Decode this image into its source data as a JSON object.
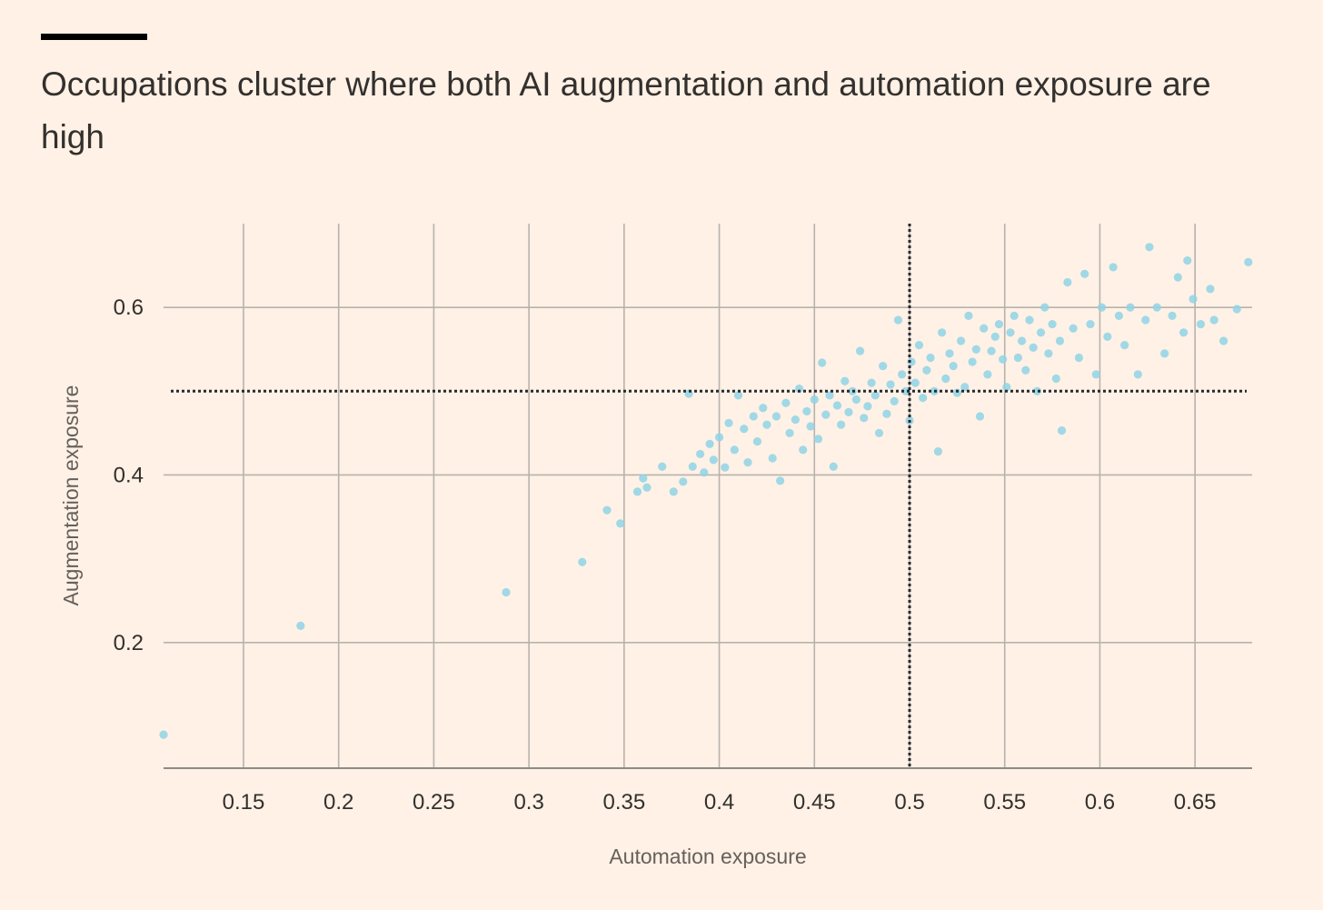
{
  "header": {
    "title": "Occupations cluster where both AI augmentation and automation exposure are high"
  },
  "colors": {
    "background": "#fff1e5",
    "point": "#8fd3e6",
    "grid": "#b8b2ad",
    "reference_line": "#262a33",
    "text": "#33302e"
  },
  "chart_data": {
    "type": "scatter",
    "title": "Occupations cluster where both AI augmentation and automation exposure are high",
    "xlabel": "Automation exposure",
    "ylabel": "Augmentation exposure",
    "xlim": [
      0.108,
      0.68
    ],
    "ylim": [
      0.05,
      0.7
    ],
    "x_ticks": [
      0.15,
      0.2,
      0.25,
      0.3,
      0.35,
      0.4,
      0.45,
      0.5,
      0.55,
      0.6,
      0.65
    ],
    "x_tick_labels": [
      "0.15",
      "0.2",
      "0.25",
      "0.3",
      "0.35",
      "0.4",
      "0.45",
      "0.5",
      "0.55",
      "0.6",
      "0.65"
    ],
    "y_ticks": [
      0.2,
      0.4,
      0.6
    ],
    "y_tick_labels": [
      "0.2",
      "0.4",
      "0.6"
    ],
    "grid": true,
    "reference_lines": {
      "x": 0.5,
      "y": 0.5,
      "style": "dotted"
    },
    "series": [
      {
        "name": "Occupations",
        "points": [
          [
            0.108,
            0.09
          ],
          [
            0.18,
            0.22
          ],
          [
            0.288,
            0.26
          ],
          [
            0.328,
            0.296
          ],
          [
            0.341,
            0.358
          ],
          [
            0.348,
            0.342
          ],
          [
            0.357,
            0.38
          ],
          [
            0.36,
            0.396
          ],
          [
            0.362,
            0.385
          ],
          [
            0.37,
            0.41
          ],
          [
            0.376,
            0.38
          ],
          [
            0.381,
            0.392
          ],
          [
            0.384,
            0.497
          ],
          [
            0.386,
            0.41
          ],
          [
            0.39,
            0.425
          ],
          [
            0.392,
            0.403
          ],
          [
            0.395,
            0.437
          ],
          [
            0.397,
            0.418
          ],
          [
            0.4,
            0.445
          ],
          [
            0.403,
            0.409
          ],
          [
            0.405,
            0.462
          ],
          [
            0.408,
            0.43
          ],
          [
            0.41,
            0.495
          ],
          [
            0.413,
            0.455
          ],
          [
            0.415,
            0.415
          ],
          [
            0.418,
            0.47
          ],
          [
            0.42,
            0.44
          ],
          [
            0.423,
            0.48
          ],
          [
            0.425,
            0.46
          ],
          [
            0.428,
            0.42
          ],
          [
            0.43,
            0.47
          ],
          [
            0.432,
            0.393
          ],
          [
            0.435,
            0.486
          ],
          [
            0.437,
            0.45
          ],
          [
            0.44,
            0.466
          ],
          [
            0.442,
            0.503
          ],
          [
            0.444,
            0.43
          ],
          [
            0.446,
            0.476
          ],
          [
            0.448,
            0.458
          ],
          [
            0.45,
            0.49
          ],
          [
            0.452,
            0.443
          ],
          [
            0.454,
            0.534
          ],
          [
            0.456,
            0.472
          ],
          [
            0.458,
            0.495
          ],
          [
            0.46,
            0.41
          ],
          [
            0.462,
            0.483
          ],
          [
            0.464,
            0.46
          ],
          [
            0.466,
            0.512
          ],
          [
            0.468,
            0.475
          ],
          [
            0.47,
            0.5
          ],
          [
            0.472,
            0.49
          ],
          [
            0.474,
            0.548
          ],
          [
            0.476,
            0.468
          ],
          [
            0.478,
            0.482
          ],
          [
            0.48,
            0.51
          ],
          [
            0.482,
            0.495
          ],
          [
            0.484,
            0.45
          ],
          [
            0.486,
            0.53
          ],
          [
            0.488,
            0.473
          ],
          [
            0.49,
            0.508
          ],
          [
            0.492,
            0.488
          ],
          [
            0.494,
            0.585
          ],
          [
            0.496,
            0.52
          ],
          [
            0.498,
            0.5
          ],
          [
            0.5,
            0.465
          ],
          [
            0.501,
            0.535
          ],
          [
            0.503,
            0.51
          ],
          [
            0.505,
            0.555
          ],
          [
            0.507,
            0.492
          ],
          [
            0.509,
            0.525
          ],
          [
            0.511,
            0.54
          ],
          [
            0.513,
            0.5
          ],
          [
            0.515,
            0.428
          ],
          [
            0.517,
            0.57
          ],
          [
            0.519,
            0.515
          ],
          [
            0.521,
            0.545
          ],
          [
            0.523,
            0.53
          ],
          [
            0.525,
            0.498
          ],
          [
            0.527,
            0.56
          ],
          [
            0.529,
            0.505
          ],
          [
            0.531,
            0.59
          ],
          [
            0.533,
            0.535
          ],
          [
            0.535,
            0.55
          ],
          [
            0.537,
            0.47
          ],
          [
            0.539,
            0.575
          ],
          [
            0.541,
            0.52
          ],
          [
            0.543,
            0.548
          ],
          [
            0.545,
            0.565
          ],
          [
            0.547,
            0.58
          ],
          [
            0.549,
            0.538
          ],
          [
            0.551,
            0.505
          ],
          [
            0.553,
            0.57
          ],
          [
            0.555,
            0.59
          ],
          [
            0.557,
            0.54
          ],
          [
            0.559,
            0.56
          ],
          [
            0.561,
            0.525
          ],
          [
            0.563,
            0.585
          ],
          [
            0.565,
            0.552
          ],
          [
            0.567,
            0.5
          ],
          [
            0.569,
            0.57
          ],
          [
            0.571,
            0.6
          ],
          [
            0.573,
            0.545
          ],
          [
            0.575,
            0.58
          ],
          [
            0.577,
            0.515
          ],
          [
            0.579,
            0.56
          ],
          [
            0.58,
            0.453
          ],
          [
            0.583,
            0.63
          ],
          [
            0.586,
            0.575
          ],
          [
            0.589,
            0.54
          ],
          [
            0.592,
            0.64
          ],
          [
            0.595,
            0.58
          ],
          [
            0.598,
            0.52
          ],
          [
            0.601,
            0.6
          ],
          [
            0.604,
            0.565
          ],
          [
            0.607,
            0.648
          ],
          [
            0.61,
            0.59
          ],
          [
            0.613,
            0.555
          ],
          [
            0.616,
            0.6
          ],
          [
            0.62,
            0.52
          ],
          [
            0.624,
            0.585
          ],
          [
            0.626,
            0.672
          ],
          [
            0.63,
            0.6
          ],
          [
            0.634,
            0.545
          ],
          [
            0.638,
            0.59
          ],
          [
            0.641,
            0.636
          ],
          [
            0.644,
            0.57
          ],
          [
            0.646,
            0.656
          ],
          [
            0.649,
            0.61
          ],
          [
            0.653,
            0.58
          ],
          [
            0.658,
            0.622
          ],
          [
            0.66,
            0.585
          ],
          [
            0.665,
            0.56
          ],
          [
            0.672,
            0.598
          ],
          [
            0.678,
            0.654
          ]
        ]
      }
    ]
  }
}
